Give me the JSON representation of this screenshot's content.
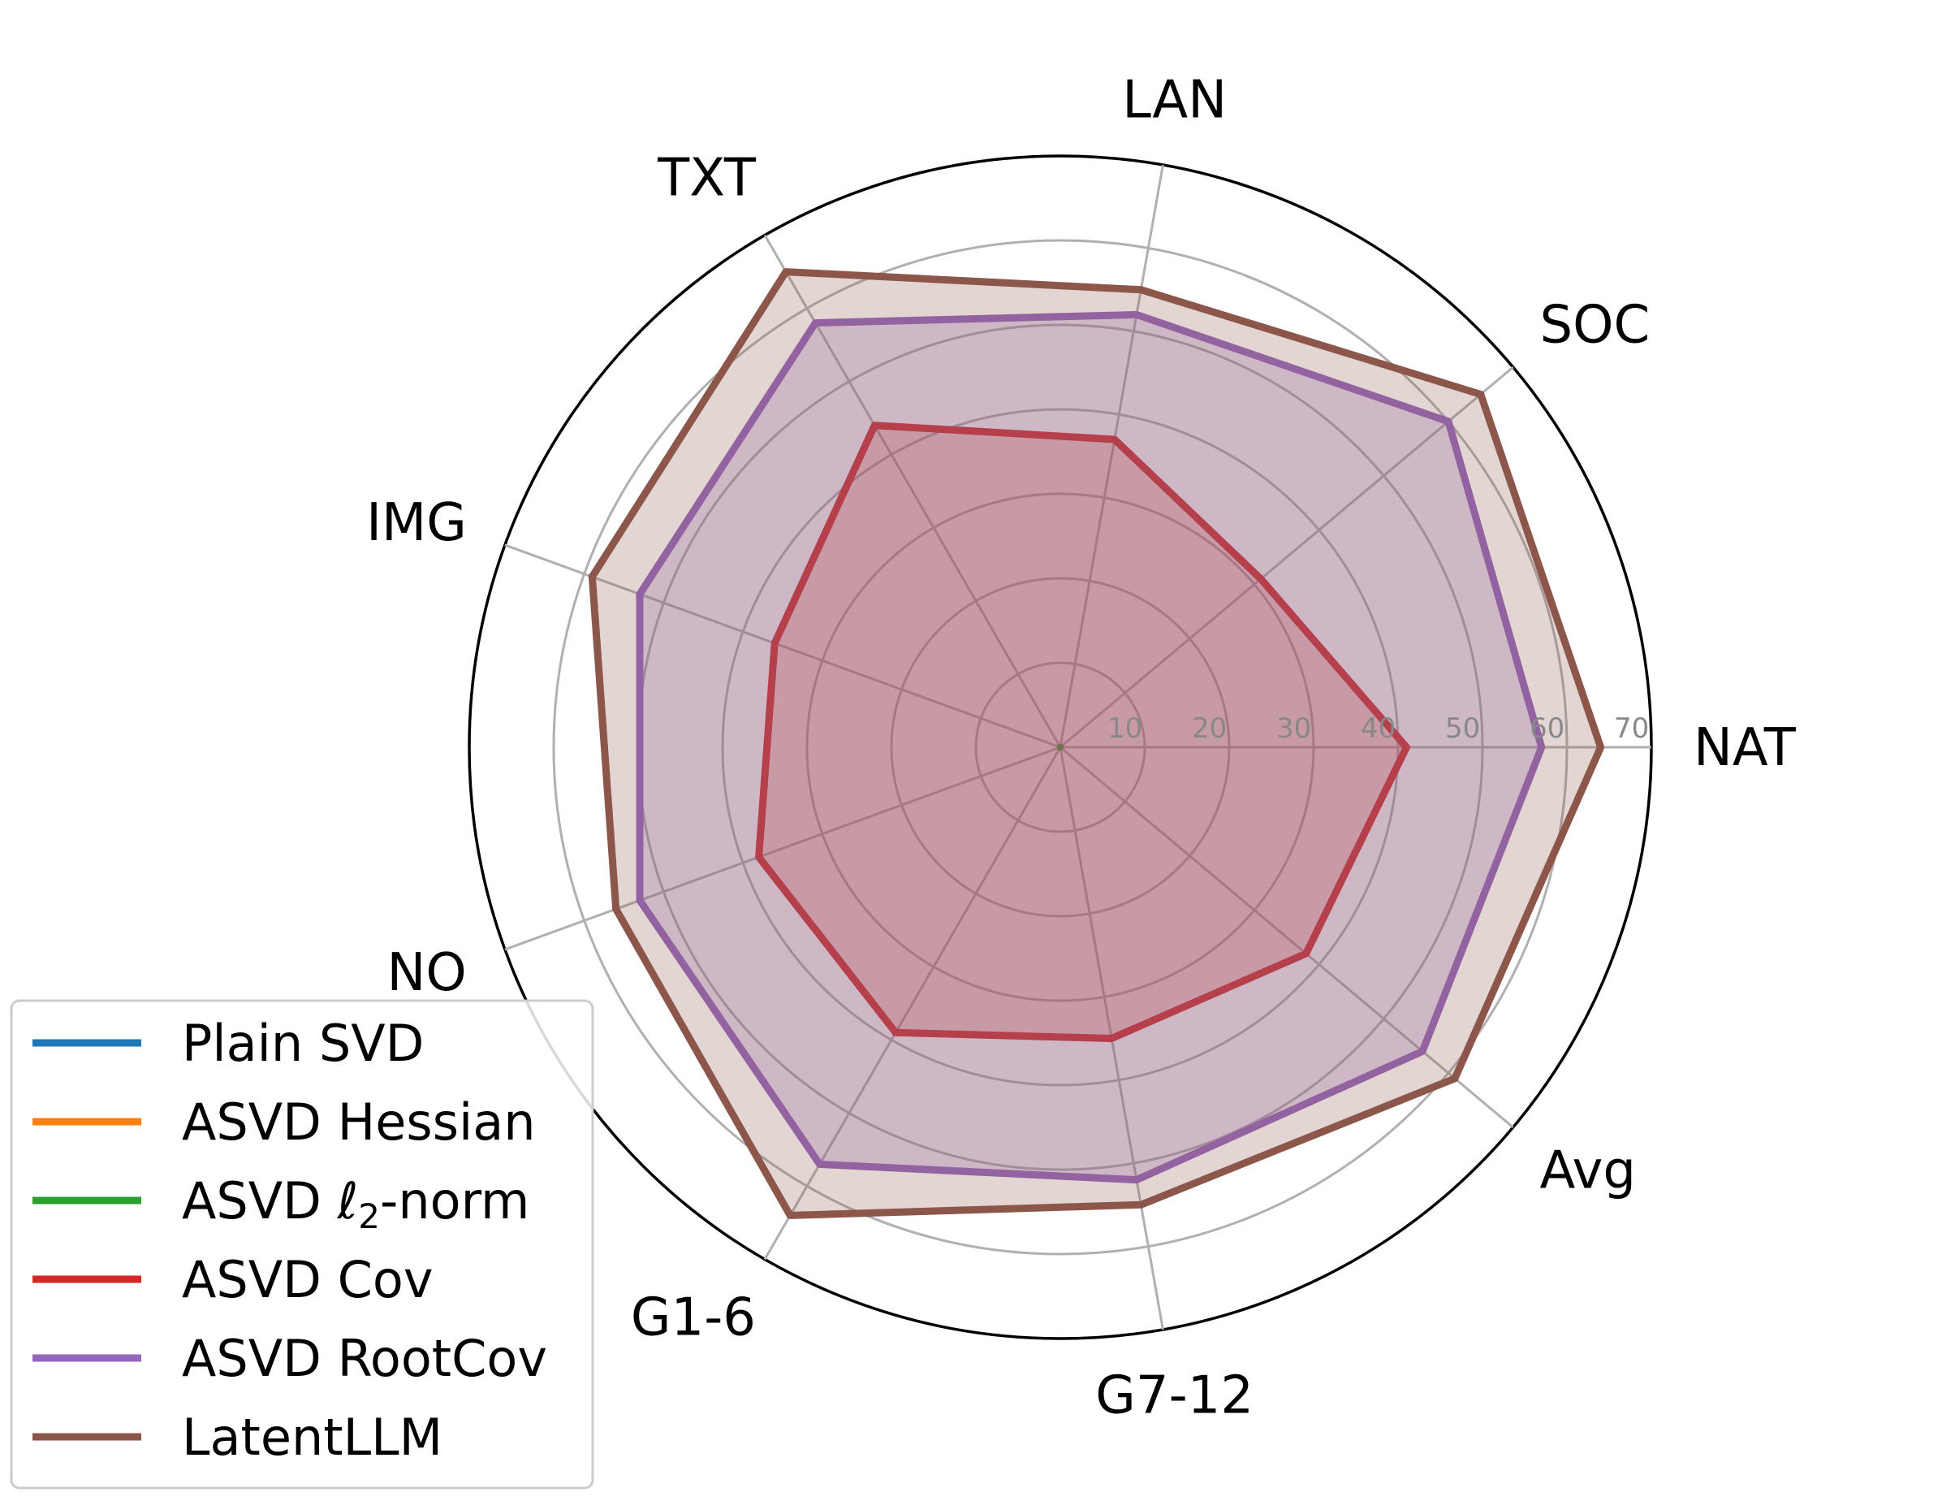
{
  "chart_data": {
    "type": "radar",
    "categories": [
      "NAT",
      "SOC",
      "LAN",
      "TXT",
      "IMG",
      "NO",
      "G1-6",
      "G7-12",
      "Avg"
    ],
    "rlim": [
      0,
      70
    ],
    "radial_ticks": [
      10,
      20,
      30,
      40,
      50,
      60,
      70
    ],
    "grid": true,
    "legend_position": "lower-left",
    "series": [
      {
        "name": "Plain SVD",
        "color": "#1f77b4",
        "values": [
          0,
          0,
          0,
          0,
          0,
          0,
          0,
          0,
          0
        ]
      },
      {
        "name": "ASVD Hessian",
        "color": "#ff7f0e",
        "values": [
          0,
          0,
          0,
          0,
          0,
          0,
          0,
          0,
          0
        ]
      },
      {
        "name": "ASVD ℓ2-norm",
        "color": "#2ca02c",
        "values": [
          0,
          0,
          0,
          0,
          0,
          0,
          0,
          0,
          0
        ]
      },
      {
        "name": "ASVD Cov",
        "color": "#d62728",
        "values": [
          41,
          31,
          37,
          44,
          36,
          38,
          39,
          35,
          38
        ]
      },
      {
        "name": "ASVD RootCov",
        "color": "#9467bd",
        "values": [
          57,
          60,
          52,
          58,
          53,
          53,
          57,
          52,
          56
        ]
      },
      {
        "name": "LatentLLM",
        "color": "#8c564b",
        "values": [
          64,
          65,
          55,
          65,
          59,
          56,
          64,
          55,
          61
        ]
      }
    ]
  }
}
